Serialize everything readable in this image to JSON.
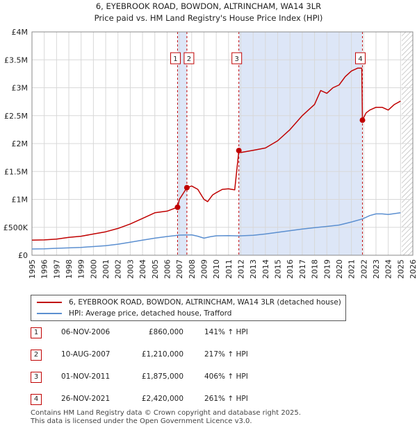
{
  "header": {
    "title_line1": "6, EYEBROOK ROAD, BOWDON, ALTRINCHAM, WA14 3LR",
    "title_line2": "Price paid vs. HM Land Registry's House Price Index (HPI)"
  },
  "legend": {
    "property_label": "6, EYEBROOK ROAD, BOWDON, ALTRINCHAM, WA14 3LR (detached house)",
    "hpi_label": "HPI: Average price, detached house, Trafford"
  },
  "sales": [
    {
      "num": "1",
      "date": "06-NOV-2006",
      "price": "£860,000",
      "hpi": "141% ↑ HPI"
    },
    {
      "num": "2",
      "date": "10-AUG-2007",
      "price": "£1,210,000",
      "hpi": "217% ↑ HPI"
    },
    {
      "num": "3",
      "date": "01-NOV-2011",
      "price": "£1,875,000",
      "hpi": "406% ↑ HPI"
    },
    {
      "num": "4",
      "date": "26-NOV-2021",
      "price": "£2,420,000",
      "hpi": "261% ↑ HPI"
    }
  ],
  "footer": {
    "line1": "Contains HM Land Registry data © Crown copyright and database right 2025.",
    "line2": "This data is licensed under the Open Government Licence v3.0."
  },
  "colors": {
    "property": "#c00000",
    "hpi": "#5b8fd0",
    "shade": "#dde6f7",
    "hatch": "#bbbbbb"
  },
  "chart_data": {
    "type": "line",
    "xlim": [
      1995,
      2026
    ],
    "ylim": [
      0,
      4000000
    ],
    "x_ticks": [
      "1995",
      "1996",
      "1997",
      "1998",
      "1999",
      "2000",
      "2001",
      "2002",
      "2003",
      "2004",
      "2005",
      "2006",
      "2007",
      "2008",
      "2009",
      "2010",
      "2011",
      "2012",
      "2013",
      "2014",
      "2015",
      "2016",
      "2017",
      "2018",
      "2019",
      "2020",
      "2021",
      "2022",
      "2023",
      "2024",
      "2025",
      "2026"
    ],
    "y_ticks": [
      {
        "value": 0,
        "label": "£0"
      },
      {
        "value": 500000,
        "label": "£500K"
      },
      {
        "value": 1000000,
        "label": "£1M"
      },
      {
        "value": 1500000,
        "label": "£1.5M"
      },
      {
        "value": 2000000,
        "label": "£2M"
      },
      {
        "value": 2500000,
        "label": "£2.5M"
      },
      {
        "value": 3000000,
        "label": "£3M"
      },
      {
        "value": 3500000,
        "label": "£3.5M"
      },
      {
        "value": 4000000,
        "label": "£4M"
      }
    ],
    "grid": true,
    "shaded_ranges": [
      [
        2006.85,
        2007.61
      ],
      [
        2011.84,
        2021.9
      ]
    ],
    "future_hatch_from": 2025.1,
    "series": [
      {
        "name": "6, EYEBROOK ROAD, BOWDON, ALTRINCHAM, WA14 3LR (detached house)",
        "color": "#c00000",
        "points": [
          [
            1995.0,
            270000
          ],
          [
            1996.0,
            275000
          ],
          [
            1997.0,
            290000
          ],
          [
            1998.0,
            320000
          ],
          [
            1999.0,
            340000
          ],
          [
            2000.0,
            380000
          ],
          [
            2001.0,
            420000
          ],
          [
            2002.0,
            480000
          ],
          [
            2003.0,
            560000
          ],
          [
            2004.0,
            660000
          ],
          [
            2005.0,
            760000
          ],
          [
            2006.0,
            790000
          ],
          [
            2006.85,
            860000
          ],
          [
            2007.0,
            1000000
          ],
          [
            2007.61,
            1210000
          ],
          [
            2008.0,
            1240000
          ],
          [
            2008.5,
            1180000
          ],
          [
            2009.0,
            1000000
          ],
          [
            2009.3,
            960000
          ],
          [
            2009.7,
            1080000
          ],
          [
            2010.0,
            1120000
          ],
          [
            2010.5,
            1180000
          ],
          [
            2011.0,
            1190000
          ],
          [
            2011.5,
            1170000
          ],
          [
            2011.84,
            1875000
          ],
          [
            2012.0,
            1840000
          ],
          [
            2013.0,
            1880000
          ],
          [
            2014.0,
            1920000
          ],
          [
            2015.0,
            2050000
          ],
          [
            2016.0,
            2250000
          ],
          [
            2017.0,
            2500000
          ],
          [
            2017.5,
            2600000
          ],
          [
            2018.0,
            2700000
          ],
          [
            2018.5,
            2950000
          ],
          [
            2019.0,
            2900000
          ],
          [
            2019.5,
            3000000
          ],
          [
            2020.0,
            3050000
          ],
          [
            2020.5,
            3200000
          ],
          [
            2021.0,
            3300000
          ],
          [
            2021.5,
            3350000
          ],
          [
            2021.85,
            3350000
          ],
          [
            2021.9,
            2420000
          ],
          [
            2022.2,
            2550000
          ],
          [
            2022.5,
            2600000
          ],
          [
            2023.0,
            2650000
          ],
          [
            2023.5,
            2650000
          ],
          [
            2024.0,
            2600000
          ],
          [
            2024.5,
            2700000
          ],
          [
            2025.0,
            2760000
          ]
        ]
      },
      {
        "name": "HPI: Average price, detached house, Trafford",
        "color": "#5b8fd0",
        "points": [
          [
            1995.0,
            112000
          ],
          [
            1996.0,
            116000
          ],
          [
            1997.0,
            124000
          ],
          [
            1998.0,
            132000
          ],
          [
            1999.0,
            140000
          ],
          [
            2000.0,
            155000
          ],
          [
            2001.0,
            172000
          ],
          [
            2002.0,
            197000
          ],
          [
            2003.0,
            232000
          ],
          [
            2004.0,
            270000
          ],
          [
            2005.0,
            305000
          ],
          [
            2006.0,
            335000
          ],
          [
            2007.0,
            360000
          ],
          [
            2008.0,
            365000
          ],
          [
            2008.5,
            340000
          ],
          [
            2009.0,
            305000
          ],
          [
            2009.5,
            330000
          ],
          [
            2010.0,
            348000
          ],
          [
            2011.0,
            352000
          ],
          [
            2011.84,
            346000
          ],
          [
            2012.0,
            348000
          ],
          [
            2013.0,
            358000
          ],
          [
            2014.0,
            380000
          ],
          [
            2015.0,
            410000
          ],
          [
            2016.0,
            440000
          ],
          [
            2017.0,
            470000
          ],
          [
            2018.0,
            495000
          ],
          [
            2019.0,
            515000
          ],
          [
            2020.0,
            540000
          ],
          [
            2021.0,
            595000
          ],
          [
            2021.9,
            650000
          ],
          [
            2022.5,
            710000
          ],
          [
            2023.0,
            740000
          ],
          [
            2023.5,
            740000
          ],
          [
            2024.0,
            730000
          ],
          [
            2024.5,
            745000
          ],
          [
            2025.0,
            760000
          ]
        ]
      }
    ],
    "sale_markers": [
      {
        "label": "1",
        "x": 2006.85,
        "y": 860000
      },
      {
        "label": "2",
        "x": 2007.61,
        "y": 1210000
      },
      {
        "label": "3",
        "x": 2011.84,
        "y": 1875000
      },
      {
        "label": "4",
        "x": 2021.9,
        "y": 2420000
      }
    ]
  }
}
